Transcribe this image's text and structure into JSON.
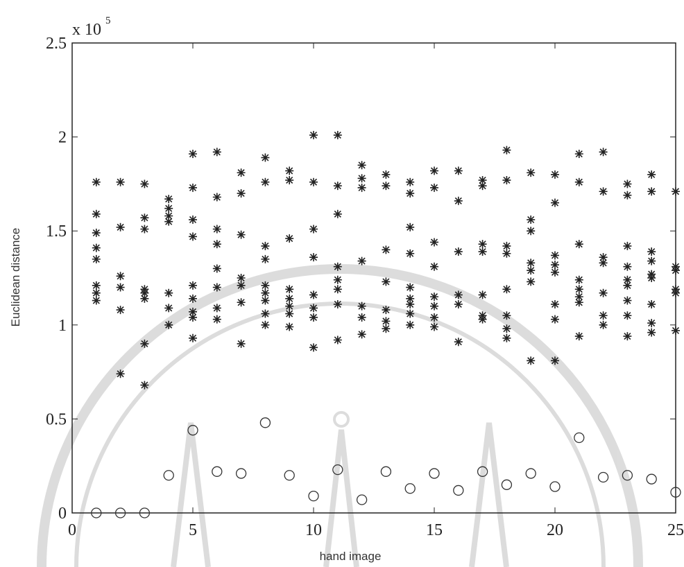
{
  "chart_data": {
    "type": "scatter",
    "y_label": "Euclidean distance",
    "x_label": "hand image",
    "multiplier": {
      "base": "x 10",
      "exponent": "5"
    },
    "xlim": [
      0,
      25
    ],
    "xticks": [
      0,
      5,
      10,
      15,
      20,
      25
    ],
    "ylim": [
      0,
      2.5
    ],
    "yticks": [
      0,
      0.5,
      1,
      1.5,
      2,
      2.5
    ],
    "series": [
      {
        "marker": "star",
        "color": "#222222",
        "x": [
          1,
          1,
          1,
          1,
          1,
          1,
          1,
          1,
          2,
          2,
          2,
          2,
          2,
          2,
          3,
          3,
          3,
          3,
          3,
          3,
          3,
          3,
          4,
          4,
          4,
          4,
          4,
          4,
          4,
          5,
          5,
          5,
          5,
          5,
          5,
          5,
          5,
          5,
          6,
          6,
          6,
          6,
          6,
          6,
          6,
          6,
          7,
          7,
          7,
          7,
          7,
          7,
          7,
          8,
          8,
          8,
          8,
          8,
          8,
          8,
          8,
          8,
          9,
          9,
          9,
          9,
          9,
          9,
          9,
          9,
          10,
          10,
          10,
          10,
          10,
          10,
          10,
          10,
          11,
          11,
          11,
          11,
          11,
          11,
          11,
          11,
          12,
          12,
          12,
          12,
          12,
          12,
          12,
          13,
          13,
          13,
          13,
          13,
          13,
          13,
          14,
          14,
          14,
          14,
          14,
          14,
          14,
          14,
          14,
          15,
          15,
          15,
          15,
          15,
          15,
          15,
          15,
          16,
          16,
          16,
          16,
          16,
          16,
          17,
          17,
          17,
          17,
          17,
          17,
          17,
          18,
          18,
          18,
          18,
          18,
          18,
          18,
          18,
          19,
          19,
          19,
          19,
          19,
          19,
          19,
          20,
          20,
          20,
          20,
          20,
          20,
          20,
          20,
          21,
          21,
          21,
          21,
          21,
          21,
          21,
          21,
          22,
          22,
          22,
          22,
          22,
          22,
          22,
          23,
          23,
          23,
          23,
          23,
          23,
          23,
          23,
          23,
          24,
          24,
          24,
          24,
          24,
          24,
          24,
          24,
          24,
          25,
          25,
          25,
          25,
          25,
          25
        ],
        "values": [
          1.76,
          1.59,
          1.49,
          1.41,
          1.35,
          1.21,
          1.17,
          1.13,
          1.76,
          1.52,
          1.26,
          1.2,
          1.08,
          0.74,
          1.75,
          1.57,
          1.51,
          1.19,
          1.17,
          1.14,
          0.9,
          0.68,
          1.67,
          1.62,
          1.58,
          1.55,
          1.17,
          1.09,
          1.0,
          1.91,
          1.73,
          1.56,
          1.47,
          1.21,
          1.14,
          1.07,
          1.04,
          0.93,
          1.92,
          1.68,
          1.51,
          1.43,
          1.3,
          1.2,
          1.09,
          1.03,
          1.81,
          1.7,
          1.48,
          1.25,
          1.21,
          1.12,
          0.9,
          1.89,
          1.76,
          1.42,
          1.35,
          1.21,
          1.17,
          1.13,
          1.06,
          1.0,
          1.82,
          1.77,
          1.46,
          1.19,
          1.14,
          1.1,
          1.06,
          0.99,
          2.01,
          1.76,
          1.51,
          1.36,
          1.16,
          1.09,
          1.04,
          0.88,
          2.01,
          1.74,
          1.59,
          1.31,
          1.24,
          1.19,
          1.11,
          0.92,
          1.85,
          1.78,
          1.73,
          1.34,
          1.1,
          1.04,
          0.95,
          1.8,
          1.74,
          1.4,
          1.23,
          1.08,
          1.02,
          0.98,
          1.76,
          1.7,
          1.52,
          1.38,
          1.2,
          1.14,
          1.11,
          1.06,
          1.0,
          1.82,
          1.73,
          1.44,
          1.31,
          1.15,
          1.1,
          1.04,
          0.99,
          1.82,
          1.66,
          1.39,
          1.16,
          1.11,
          0.91,
          1.77,
          1.74,
          1.43,
          1.39,
          1.16,
          1.05,
          1.03,
          1.93,
          1.77,
          1.42,
          1.38,
          1.19,
          1.05,
          0.98,
          0.93,
          1.81,
          1.56,
          1.5,
          1.33,
          1.29,
          1.23,
          0.81,
          1.8,
          1.65,
          1.37,
          1.32,
          1.28,
          1.11,
          1.03,
          0.81,
          1.91,
          1.76,
          1.43,
          1.24,
          1.19,
          1.15,
          1.12,
          0.94,
          1.92,
          1.71,
          1.36,
          1.33,
          1.17,
          1.05,
          1.0,
          1.75,
          1.69,
          1.42,
          1.31,
          1.24,
          1.21,
          1.13,
          1.05,
          0.94,
          1.8,
          1.71,
          1.39,
          1.34,
          1.27,
          1.25,
          1.11,
          1.01,
          0.96,
          1.71,
          1.31,
          1.29,
          1.19,
          1.17,
          0.97
        ]
      },
      {
        "marker": "circle",
        "color": "#333333",
        "x": [
          1,
          2,
          3,
          4,
          5,
          6,
          7,
          8,
          9,
          10,
          11,
          12,
          13,
          14,
          15,
          16,
          17,
          18,
          19,
          20,
          21,
          22,
          23,
          24,
          25
        ],
        "values": [
          0,
          0,
          0,
          0.2,
          0.44,
          0.22,
          0.21,
          0.48,
          0.2,
          0.09,
          0.23,
          0.07,
          0.22,
          0.13,
          0.21,
          0.12,
          0.22,
          0.15,
          0.21,
          0.14,
          0.4,
          0.19,
          0.2,
          0.18,
          0.11
        ]
      }
    ]
  }
}
